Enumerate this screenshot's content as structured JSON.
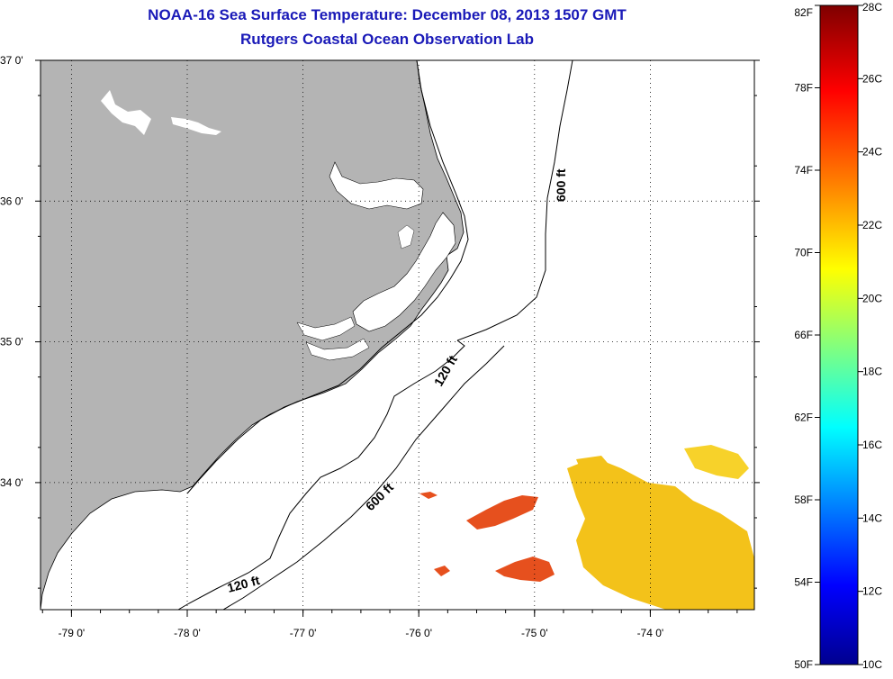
{
  "title": "NOAA-16 Sea Surface Temperature:  December 08, 2013 1507 GMT",
  "subtitle": "Rutgers Coastal Ocean Observation Lab",
  "map": {
    "lon_ticks": [
      {
        "value": -79,
        "label": "-79 0'"
      },
      {
        "value": -78,
        "label": "-78 0'"
      },
      {
        "value": -77,
        "label": "-77 0'"
      },
      {
        "value": -76,
        "label": "-76 0'"
      },
      {
        "value": -75,
        "label": "-75 0'"
      },
      {
        "value": -74,
        "label": "-74 0'"
      }
    ],
    "lat_ticks": [
      {
        "value": 37,
        "label": "37 0'"
      },
      {
        "value": 36,
        "label": "36 0'"
      },
      {
        "value": 35,
        "label": "35 0'"
      },
      {
        "value": 34,
        "label": "34 0'"
      }
    ],
    "contours": [
      {
        "depth": "600 ft",
        "label": "600 ft"
      },
      {
        "depth": "120 ft",
        "label": "120 ft"
      }
    ],
    "colors": {
      "land": "#b4b4b4",
      "ocean": "#ffffff",
      "sst_warm": "#f3c21a",
      "sst_hot": "#e6501e"
    }
  },
  "colorbar": {
    "fahrenheit": [
      "82F",
      "78F",
      "74F",
      "70F",
      "66F",
      "62F",
      "58F",
      "54F",
      "50F"
    ],
    "celsius": [
      "28C",
      "26C",
      "24C",
      "22C",
      "20C",
      "18C",
      "16C",
      "14C",
      "12C",
      "10C"
    ],
    "colors": [
      "#7f0000",
      "#ff0000",
      "#ff8000",
      "#ffff00",
      "#80ff80",
      "#00ffff",
      "#0080ff",
      "#0000ff",
      "#00008f"
    ]
  }
}
